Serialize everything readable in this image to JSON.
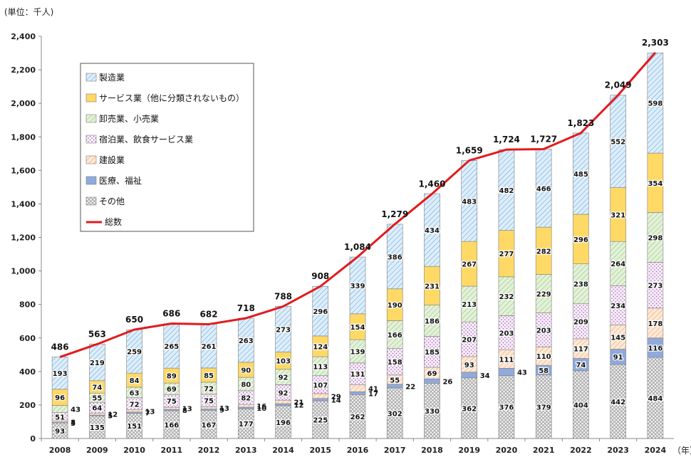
{
  "chart_data": {
    "type": "bar",
    "stacked": true,
    "unit_label": "(単位：千人)",
    "x_unit_label": "（年）",
    "categories": [
      "2008",
      "2009",
      "2010",
      "2011",
      "2012",
      "2013",
      "2014",
      "2015",
      "2016",
      "2017",
      "2018",
      "2019",
      "2020",
      "2021",
      "2022",
      "2023",
      "2024"
    ],
    "ylim": [
      0,
      2400
    ],
    "y_ticks": [
      "0",
      "200",
      "400",
      "600",
      "800",
      "1,000",
      "1,200",
      "1,400",
      "1,600",
      "1,800",
      "2,000",
      "2,200",
      "2,400"
    ],
    "grid": false,
    "legend_position": "top-left",
    "series": [
      {
        "name": "その他",
        "color": "#d9d9d9",
        "pattern": "crosshatch",
        "values": [
          93,
          135,
          151,
          166,
          167,
          177,
          196,
          225,
          262,
          302,
          330,
          362,
          376,
          379,
          404,
          442,
          484
        ]
      },
      {
        "name": "医療、福祉",
        "color": "#8eaadb",
        "pattern": "solid",
        "values": [
          3,
          5,
          7,
          8,
          9,
          10,
          12,
          14,
          17,
          22,
          26,
          34,
          43,
          58,
          74,
          91,
          116
        ]
      },
      {
        "name": "建設業",
        "color": "#f4b183",
        "pattern": "diagonal",
        "values": [
          8,
          12,
          13,
          13,
          13,
          16,
          21,
          29,
          41,
          55,
          69,
          93,
          111,
          110,
          117,
          145,
          178
        ]
      },
      {
        "name": "宿泊業、飲食サービス業",
        "color": "#c9a0dc",
        "pattern": "dots",
        "values": [
          51,
          64,
          72,
          75,
          75,
          82,
          92,
          107,
          131,
          158,
          185,
          207,
          203,
          203,
          209,
          234,
          273
        ]
      },
      {
        "name": "卸売業、小売業",
        "color": "#c5e0b4",
        "pattern": "diagonal",
        "values": [
          43,
          55,
          63,
          69,
          72,
          80,
          92,
          113,
          139,
          166,
          186,
          213,
          232,
          229,
          238,
          264,
          298
        ]
      },
      {
        "name": "サービス業（他に分類されないもの）",
        "color": "#ffd966",
        "pattern": "solid",
        "values": [
          96,
          74,
          84,
          89,
          85,
          90,
          103,
          124,
          154,
          190,
          231,
          267,
          277,
          282,
          296,
          321,
          354
        ]
      },
      {
        "name": "製造業",
        "color": "#bdd7ee",
        "pattern": "diagonal",
        "values": [
          193,
          219,
          259,
          265,
          261,
          263,
          273,
          296,
          339,
          386,
          434,
          483,
          482,
          466,
          485,
          552,
          598
        ]
      }
    ],
    "total_series": {
      "name": "総数",
      "color": "#e31a1c",
      "values": [
        486,
        563,
        650,
        686,
        682,
        718,
        788,
        908,
        1084,
        1279,
        1460,
        1659,
        1724,
        1727,
        1823,
        2049,
        2303
      ],
      "labels": [
        "486",
        "563",
        "650",
        "686",
        "682",
        "718",
        "788",
        "908",
        "1,084",
        "1,279",
        "1,460",
        "1,659",
        "1,724",
        "1,727",
        "1,823",
        "2,049",
        "2,303"
      ]
    },
    "legend_order": [
      "製造業",
      "サービス業（他に分類されないもの）",
      "卸売業、小売業",
      "宿泊業、飲食サービス業",
      "建設業",
      "医療、福祉",
      "その他",
      "総数"
    ]
  }
}
